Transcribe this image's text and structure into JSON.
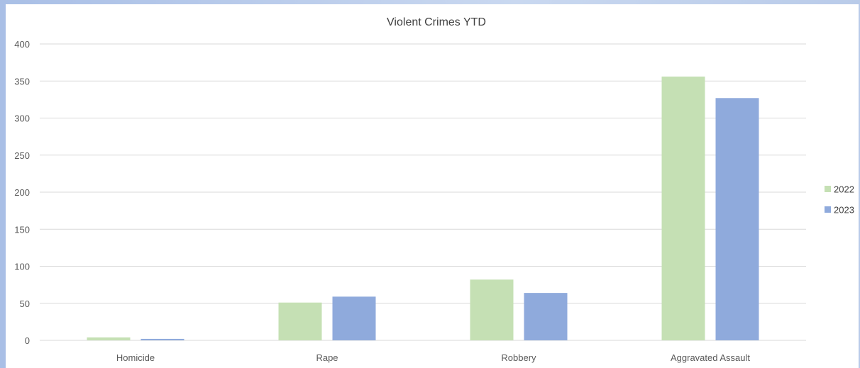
{
  "chart_data": {
    "type": "bar",
    "title": "Violent Crimes YTD",
    "xlabel": "",
    "ylabel": "",
    "ylim": [
      0,
      400
    ],
    "yticks": [
      0,
      50,
      100,
      150,
      200,
      250,
      300,
      350,
      400
    ],
    "grid": true,
    "legend_position": "right",
    "categories": [
      "Homicide",
      "Rape",
      "Robbery",
      "Aggravated Assault"
    ],
    "series": [
      {
        "name": "2022",
        "color": "#c5e0b4",
        "values": [
          4,
          51,
          82,
          356
        ]
      },
      {
        "name": "2023",
        "color": "#8faadc",
        "values": [
          2,
          59,
          64,
          327
        ]
      }
    ]
  }
}
